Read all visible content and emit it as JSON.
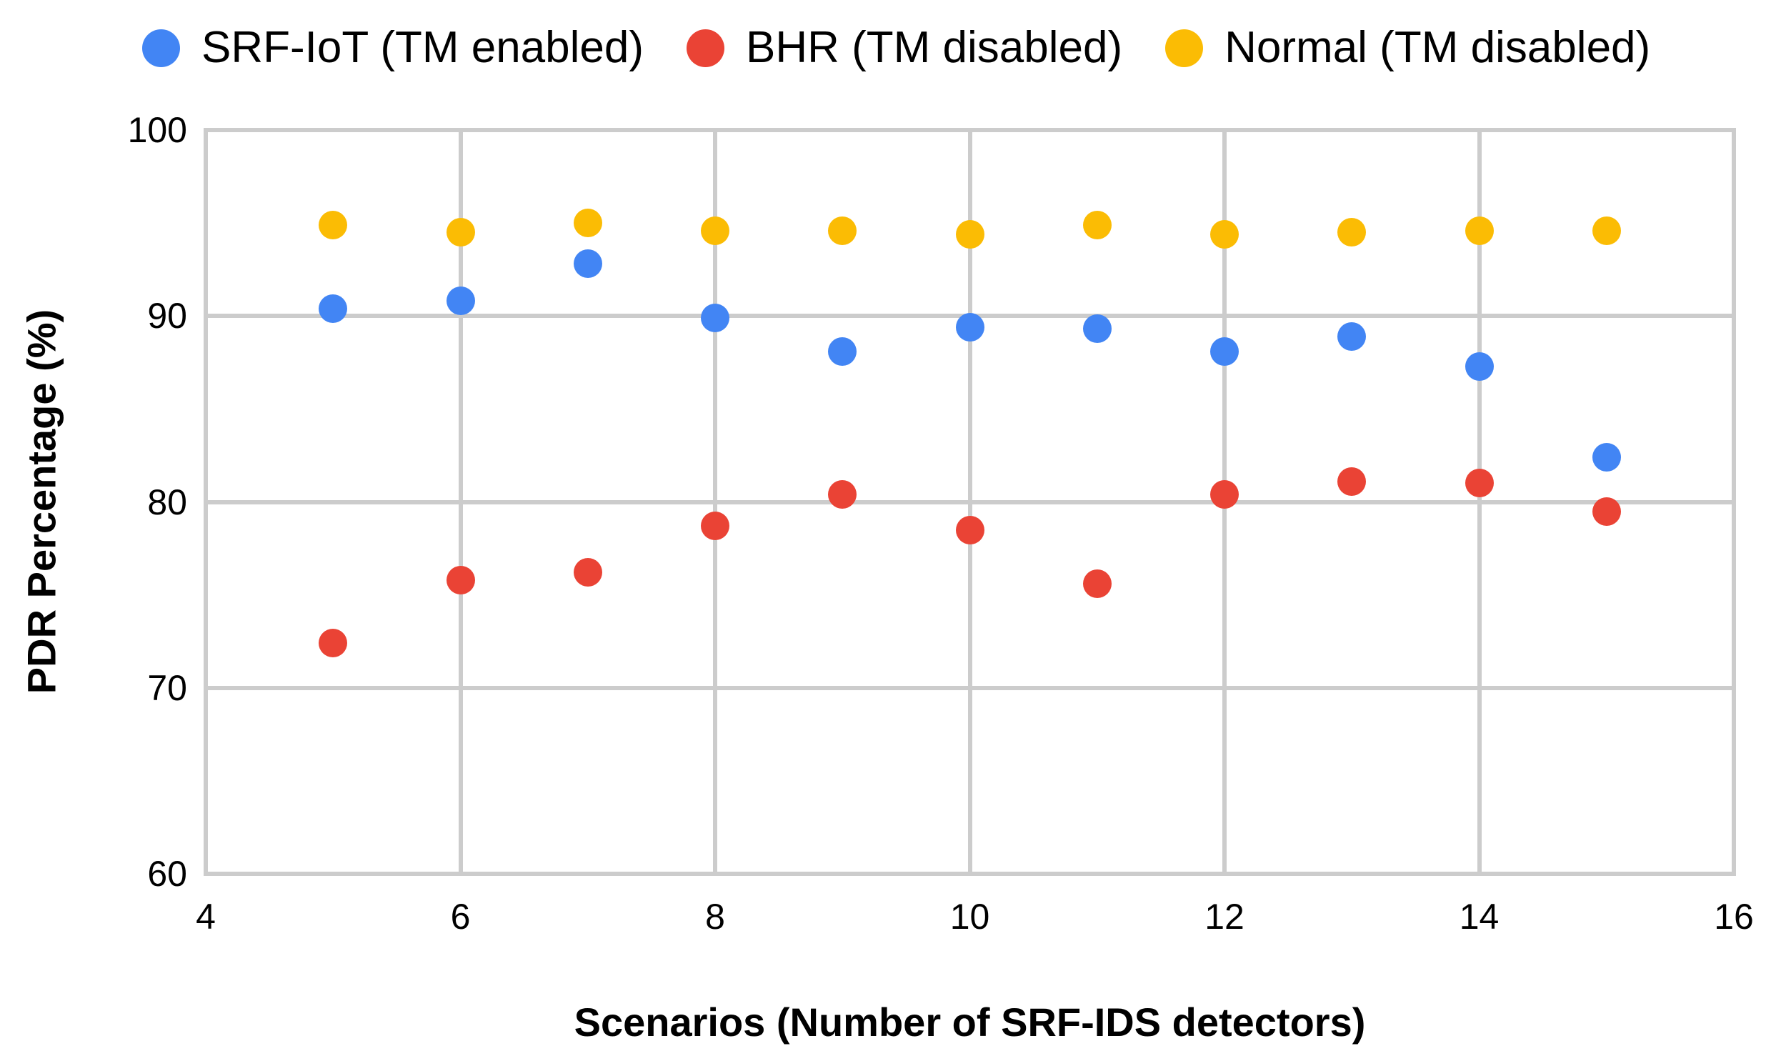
{
  "legend": {
    "items": [
      {
        "label": "SRF-IoT (TM enabled)",
        "color": "#4285F4"
      },
      {
        "label": "BHR (TM disabled)",
        "color": "#EA4335"
      },
      {
        "label": "Normal (TM disabled)",
        "color": "#FBBC04"
      }
    ]
  },
  "chart_data": {
    "type": "scatter",
    "title": "",
    "xlabel": "Scenarios (Number of SRF-IDS detectors)",
    "ylabel": "PDR Percentage (%)",
    "xlim": [
      4,
      16
    ],
    "ylim": [
      60,
      100
    ],
    "x_ticks": [
      4,
      6,
      8,
      10,
      12,
      14,
      16
    ],
    "y_ticks": [
      60,
      70,
      80,
      90,
      100
    ],
    "grid": true,
    "legend_position": "top",
    "gridline_color": "#cccccc",
    "x": [
      5,
      6,
      7,
      8,
      9,
      10,
      11,
      12,
      13,
      14,
      15
    ],
    "series": [
      {
        "name": "SRF-IoT (TM enabled)",
        "color": "#4285F4",
        "values": [
          90.4,
          90.8,
          92.8,
          89.9,
          88.1,
          89.4,
          89.3,
          88.1,
          88.9,
          87.3,
          82.4
        ]
      },
      {
        "name": "BHR (TM disabled)",
        "color": "#EA4335",
        "values": [
          72.4,
          75.8,
          76.2,
          78.7,
          80.4,
          78.5,
          75.6,
          80.4,
          81.1,
          81.0,
          79.5
        ]
      },
      {
        "name": "Normal (TM disabled)",
        "color": "#FBBC04",
        "values": [
          94.9,
          94.5,
          95.0,
          94.6,
          94.6,
          94.4,
          94.9,
          94.4,
          94.5,
          94.6,
          94.6
        ]
      }
    ]
  }
}
